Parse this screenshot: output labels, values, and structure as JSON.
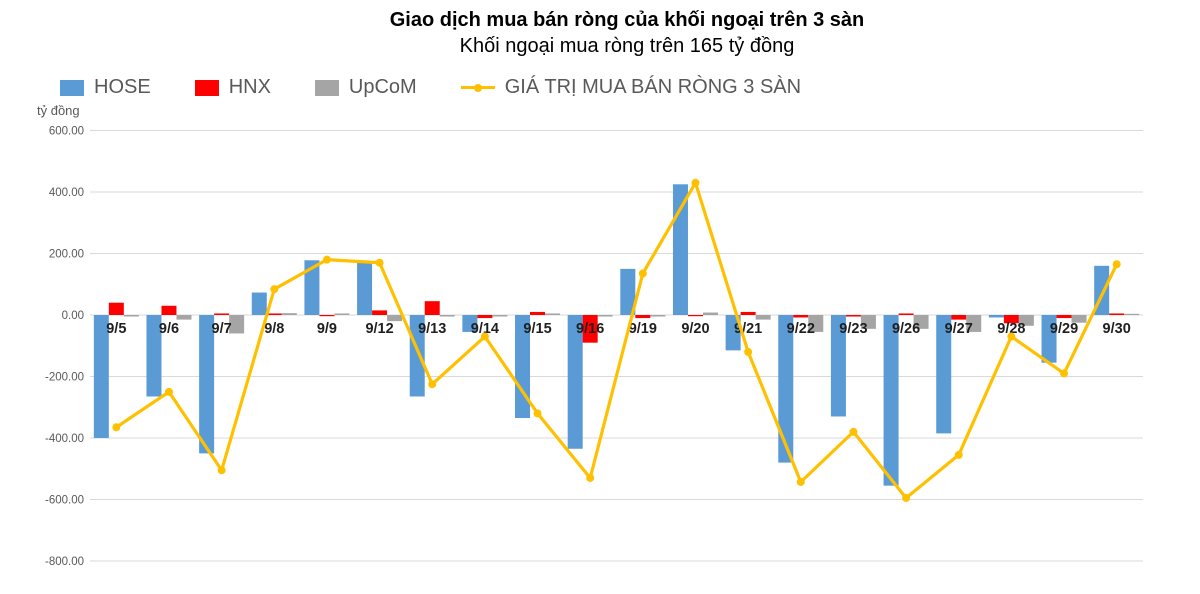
{
  "header": {
    "title": "Giao dịch mua bán ròng của khối ngoại trên 3 sàn",
    "subtitle": "Khối ngoại mua ròng trên 165 tỷ đồng"
  },
  "unit_label": "tỷ đồng",
  "legend": {
    "items": [
      {
        "label": "HOSE",
        "color": "#5B9BD5",
        "marker": "square"
      },
      {
        "label": "HNX",
        "color": "#FF0000",
        "marker": "square"
      },
      {
        "label": "UpCoM",
        "color": "#A5A5A5",
        "marker": "square"
      },
      {
        "label": "GIÁ TRỊ MUA BÁN RÒNG 3 SÀN",
        "color": "#FFC000",
        "marker": "line"
      }
    ]
  },
  "chart_data": {
    "type": "bar+line",
    "title": "Giao dịch mua bán ròng của khối ngoại trên 3 sàn",
    "subtitle": "Khối ngoại mua ròng trên 165 tỷ đồng",
    "ylabel": "tỷ đồng",
    "xlabel": "",
    "ylim": [
      -800,
      600
    ],
    "ytick_step": 200,
    "ytick_format": "two-decimals",
    "grid": true,
    "legend_position": "top-left",
    "categories": [
      "9/5",
      "9/6",
      "9/7",
      "9/8",
      "9/9",
      "9/12",
      "9/13",
      "9/14",
      "9/15",
      "9/16",
      "9/19",
      "9/20",
      "9/21",
      "9/22",
      "9/23",
      "9/26",
      "9/27",
      "9/28",
      "9/29",
      "9/30"
    ],
    "series": [
      {
        "name": "HOSE",
        "color": "#5B9BD5",
        "values": [
          -400,
          -265,
          -450,
          73,
          178,
          175,
          -265,
          -55,
          -335,
          -435,
          150,
          425,
          -115,
          -480,
          -330,
          -555,
          -385,
          -8,
          -155,
          160
        ]
      },
      {
        "name": "HNX",
        "color": "#FF0000",
        "values": [
          40,
          30,
          5,
          5,
          -3,
          15,
          45,
          -10,
          10,
          -90,
          -10,
          -3,
          10,
          -8,
          -5,
          5,
          -15,
          -27,
          -10,
          5
        ]
      },
      {
        "name": "UpCoM",
        "color": "#A5A5A5",
        "values": [
          -5,
          -15,
          -60,
          6,
          5,
          -20,
          -5,
          -5,
          5,
          -5,
          -5,
          8,
          -15,
          -55,
          -45,
          -45,
          -55,
          -35,
          -25,
          0
        ]
      }
    ],
    "line_series": {
      "name": "GIÁ TRỊ MUA BÁN RÒNG 3 SÀN",
      "color": "#FFC000",
      "values": [
        -365,
        -250,
        -505,
        84,
        180,
        170,
        -225,
        -70,
        -320,
        -530,
        135,
        430,
        -120,
        -543,
        -380,
        -595,
        -455,
        -70,
        -190,
        165
      ]
    },
    "colors": {
      "grid": "#D9D9D9",
      "axis_text": "#595959",
      "category_label": "#1F1F1F",
      "background": "#FFFFFF"
    }
  }
}
